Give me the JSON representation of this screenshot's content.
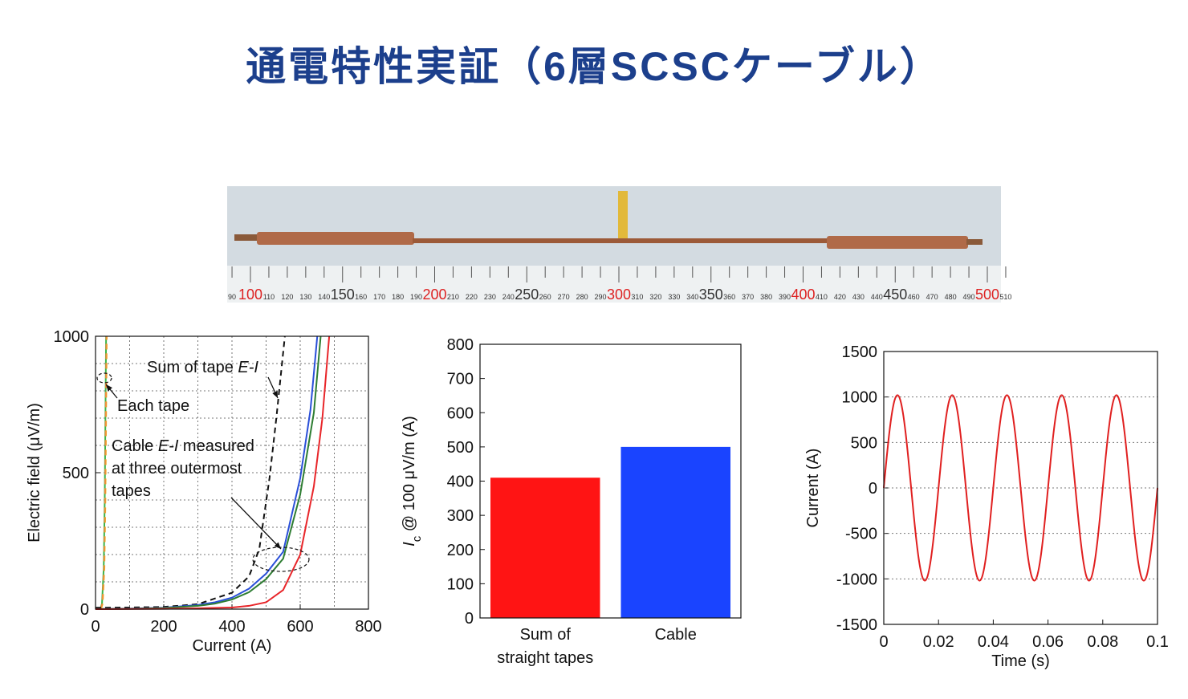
{
  "title": "通電特性実証（6層SCSCケーブル）",
  "photo": {
    "ruler_labels": [
      90,
      100,
      110,
      120,
      130,
      140,
      150,
      160,
      170,
      180,
      190,
      200,
      210,
      220,
      230,
      240,
      250,
      260,
      270,
      280,
      290,
      300,
      310,
      320,
      330,
      340,
      350,
      360,
      370,
      380,
      390,
      400,
      410,
      420,
      430,
      440,
      450,
      460,
      470,
      480,
      490,
      500,
      510
    ]
  },
  "chart_data": [
    {
      "type": "line",
      "xlabel": "Current (A)",
      "ylabel": "Electric field (μV/m)",
      "xlim": [
        0,
        800
      ],
      "xticks": [
        0,
        200,
        400,
        600,
        800
      ],
      "ylim": [
        0,
        1000
      ],
      "yticks": [
        0,
        500,
        1000
      ],
      "grid": true,
      "minor_grid": [
        100,
        100
      ],
      "annotations": [
        [
          "Sum of tape ",
          "E-I"
        ],
        [
          "Each tape"
        ],
        [
          "Cable ",
          "E-I",
          " measured"
        ],
        [
          "at three outermost"
        ],
        [
          "tapes"
        ]
      ],
      "series": [
        {
          "color": "#3cb44b",
          "x": [
            14,
            19,
            24,
            27,
            29,
            31
          ],
          "values": [
            0,
            20,
            150,
            400,
            700,
            1000
          ]
        },
        {
          "color": "#e6c619",
          "dash": true,
          "x": [
            16,
            21,
            26,
            29,
            31,
            33
          ],
          "values": [
            0,
            20,
            150,
            400,
            700,
            1000
          ]
        },
        {
          "color": "#f08c3a",
          "dash": true,
          "x": [
            15,
            20,
            25,
            28,
            30,
            32
          ],
          "values": [
            0,
            20,
            150,
            400,
            700,
            1000
          ]
        },
        {
          "color": "#111111",
          "dash": true,
          "x": [
            0,
            100,
            200,
            300,
            400,
            450,
            480,
            510,
            530,
            545,
            555
          ],
          "values": [
            5,
            6,
            8,
            18,
            60,
            120,
            220,
            480,
            700,
            880,
            1000
          ]
        },
        {
          "color": "#2a4fd8",
          "x": [
            0,
            100,
            200,
            300,
            350,
            400,
            450,
            500,
            550,
            600,
            630,
            650
          ],
          "values": [
            0,
            2,
            5,
            15,
            25,
            42,
            75,
            130,
            210,
            480,
            730,
            1000
          ]
        },
        {
          "color": "#2e7d32",
          "x": [
            0,
            100,
            200,
            300,
            350,
            400,
            450,
            500,
            550,
            600,
            640,
            660
          ],
          "values": [
            0,
            1,
            4,
            12,
            20,
            35,
            62,
            110,
            185,
            420,
            720,
            1000
          ]
        },
        {
          "color": "#e8262a",
          "x": [
            0,
            200,
            300,
            400,
            450,
            500,
            550,
            600,
            640,
            665,
            685
          ],
          "values": [
            0,
            1,
            3,
            6,
            12,
            25,
            70,
            200,
            450,
            700,
            1000
          ]
        }
      ]
    },
    {
      "type": "bar",
      "ylabel": [
        "I",
        "c",
        " @ 100 μV/m (A)"
      ],
      "categories": [
        "Sum of\nstraight tapes",
        "Cable"
      ],
      "values": [
        410,
        500
      ],
      "colors": [
        "#ff1414",
        "#1a44ff"
      ],
      "ylim": [
        0,
        800
      ],
      "yticks": [
        0,
        100,
        200,
        300,
        400,
        500,
        600,
        700,
        800
      ],
      "grid": false
    },
    {
      "type": "line",
      "smooth": true,
      "xlabel": "Time (s)",
      "ylabel": "Current (A)",
      "xlim": [
        0,
        0.1
      ],
      "xticks": [
        0,
        0.02,
        0.04,
        0.06,
        0.08,
        0.1
      ],
      "ylim": [
        -1500,
        1500
      ],
      "yticks": [
        -1500,
        -1000,
        -500,
        0,
        500,
        1000,
        1500
      ],
      "grid": true,
      "series": [
        {
          "color": "#e02020",
          "x": [
            0,
            0.001,
            0.002,
            0.003,
            0.004,
            0.005,
            0.006,
            0.007,
            0.008,
            0.009,
            0.01,
            0.011,
            0.012,
            0.013,
            0.014,
            0.015,
            0.016,
            0.017,
            0.018,
            0.019,
            0.02,
            0.021,
            0.022,
            0.023,
            0.024,
            0.025,
            0.026,
            0.027,
            0.028,
            0.029,
            0.03,
            0.031,
            0.032,
            0.033,
            0.034,
            0.035,
            0.036,
            0.037,
            0.038,
            0.039,
            0.04,
            0.041,
            0.042,
            0.043,
            0.044,
            0.045,
            0.046,
            0.047,
            0.048,
            0.049,
            0.05,
            0.051,
            0.052,
            0.053,
            0.054,
            0.055,
            0.056,
            0.057,
            0.058,
            0.059,
            0.06,
            0.061,
            0.062,
            0.063,
            0.064,
            0.065,
            0.066,
            0.067,
            0.068,
            0.069,
            0.07,
            0.071,
            0.072,
            0.073,
            0.074,
            0.075,
            0.076,
            0.077,
            0.078,
            0.079,
            0.08,
            0.081,
            0.082,
            0.083,
            0.084,
            0.085,
            0.086,
            0.087,
            0.088,
            0.089,
            0.09,
            0.091,
            0.092,
            0.093,
            0.094,
            0.095,
            0.096,
            0.097,
            0.098,
            0.099,
            0.1
          ],
          "values": [
            0,
            315,
            600,
            825,
            970,
            1020,
            970,
            825,
            600,
            315,
            0,
            -315,
            -600,
            -825,
            -970,
            -1020,
            -970,
            -825,
            -600,
            -315,
            0,
            315,
            600,
            825,
            970,
            1020,
            970,
            825,
            600,
            315,
            0,
            -315,
            -600,
            -825,
            -970,
            -1020,
            -970,
            -825,
            -600,
            -315,
            0,
            315,
            600,
            825,
            970,
            1020,
            970,
            825,
            600,
            315,
            0,
            -315,
            -600,
            -825,
            -970,
            -1020,
            -970,
            -825,
            -600,
            -315,
            0,
            315,
            600,
            825,
            970,
            1020,
            970,
            825,
            600,
            315,
            0,
            -315,
            -600,
            -825,
            -970,
            -1020,
            -970,
            -825,
            -600,
            -315,
            0,
            315,
            600,
            825,
            970,
            1020,
            970,
            825,
            600,
            315,
            0,
            -315,
            -600,
            -825,
            -970,
            -1020,
            -970,
            -825,
            -600,
            -315,
            0
          ]
        }
      ]
    }
  ]
}
